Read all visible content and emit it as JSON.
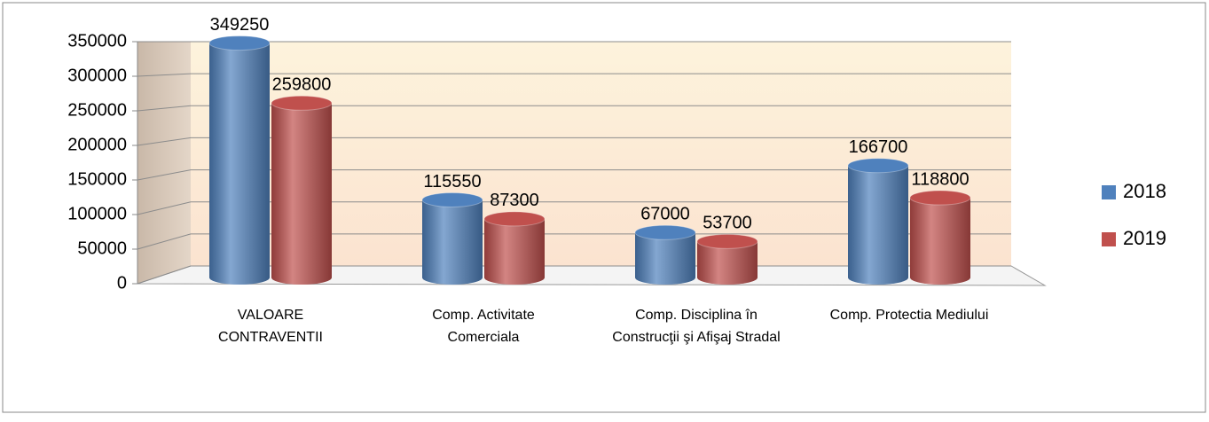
{
  "chart_data": {
    "type": "bar3d",
    "categories": [
      "VALOARE CONTRAVENTII",
      "Comp. Activitate Comerciala",
      "Comp. Disciplina în Construcţii şi Afişaj Stradal",
      "Comp. Protectia Mediului"
    ],
    "series": [
      {
        "name": "2018",
        "color": "#4f81bd",
        "values": [
          349250,
          115550,
          67000,
          166700
        ]
      },
      {
        "name": "2019",
        "color": "#c0504d",
        "values": [
          259800,
          87300,
          53700,
          118800
        ]
      }
    ],
    "ylim": [
      0,
      350000
    ],
    "yticks": [
      0,
      50000,
      100000,
      150000,
      200000,
      250000,
      300000,
      350000
    ],
    "grid": true,
    "legend": "right"
  }
}
